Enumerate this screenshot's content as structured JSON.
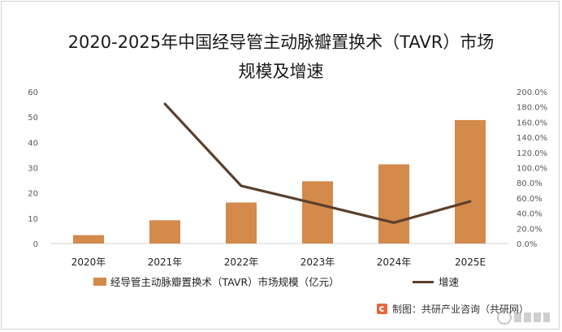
{
  "title_lines": [
    "2020-2025年中国经导管主动脉瓣置换术（TAVR）市场",
    "规模及增速"
  ],
  "chart_data": {
    "type": "bar+line",
    "categories": [
      "2020年",
      "2021年",
      "2022年",
      "2023年",
      "2024年",
      "2025E"
    ],
    "series": [
      {
        "name": "经导管主动脉瓣置换术（TAVR）市场规模（亿元）",
        "type": "bar",
        "axis": "left",
        "color": "#d38a4b",
        "values": [
          3.3,
          9.2,
          16.2,
          24.6,
          31.3,
          48.8
        ]
      },
      {
        "name": "增速",
        "type": "line",
        "axis": "right",
        "color": "#5b3f2b",
        "values": [
          null,
          184.0,
          76.0,
          52.0,
          27.5,
          55.5
        ]
      }
    ],
    "left_axis": {
      "ylim": [
        0,
        60
      ],
      "ticks": [
        "0",
        "10",
        "20",
        "30",
        "40",
        "50",
        "60"
      ]
    },
    "right_axis": {
      "ylim": [
        0,
        200
      ],
      "ticks": [
        "0.0%",
        "20.0%",
        "40.0%",
        "60.0%",
        "80.0%",
        "100.0%",
        "120.0%",
        "140.0%",
        "160.0%",
        "180.0%",
        "200.0%"
      ]
    },
    "grid": false,
    "legend_position": "bottom"
  },
  "legend": {
    "bar_label": "经导管主动脉瓣置换术（TAVR）市场规模（亿元）",
    "line_label": "增速"
  },
  "source": "制图：共研产业咨询（共研网）",
  "watermark": "共研产业咨询 www.gonyn.com"
}
